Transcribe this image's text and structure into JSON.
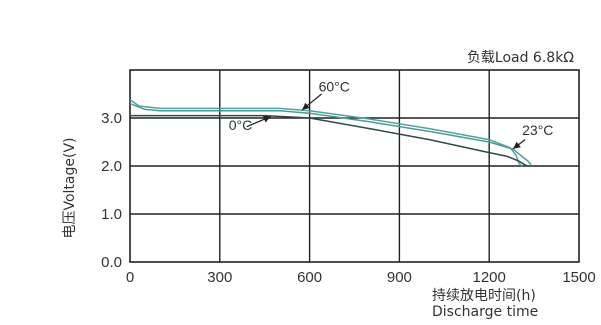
{
  "chart_data": {
    "type": "line",
    "title": "负载Load 6.8kΩ",
    "xlabel": "持续放电时间(h)",
    "xlabel2": "Discharge time",
    "ylabel": "电压Voltage(V)",
    "xlim": [
      0,
      1500
    ],
    "ylim": [
      0.0,
      4.0
    ],
    "x_ticks": [
      "0",
      "300",
      "600",
      "900",
      "1200",
      "1500"
    ],
    "y_ticks": [
      "0.0",
      "1.0",
      "2.0",
      "3.0"
    ],
    "grid": true,
    "series": [
      {
        "name": "60°C",
        "color": "#4fa3a0",
        "x": [
          0,
          30,
          100,
          300,
          500,
          600,
          800,
          1000,
          1200,
          1270,
          1290,
          1300,
          1310
        ],
        "y": [
          3.38,
          3.25,
          3.2,
          3.2,
          3.2,
          3.15,
          2.98,
          2.78,
          2.55,
          2.38,
          2.22,
          2.05,
          2.0
        ]
      },
      {
        "name": "23°C",
        "color": "#4e9a97",
        "x": [
          0,
          50,
          100,
          300,
          500,
          600,
          800,
          1000,
          1200,
          1280,
          1310,
          1330,
          1340
        ],
        "y": [
          3.3,
          3.18,
          3.15,
          3.15,
          3.15,
          3.1,
          2.92,
          2.72,
          2.5,
          2.35,
          2.2,
          2.1,
          2.03
        ]
      },
      {
        "name": "0°C",
        "color": "#2e4a48",
        "x": [
          0,
          100,
          300,
          450,
          600,
          800,
          1000,
          1200,
          1260,
          1300,
          1320,
          1330
        ],
        "y": [
          3.05,
          3.05,
          3.05,
          3.05,
          3.0,
          2.78,
          2.55,
          2.28,
          2.2,
          2.1,
          2.02,
          2.0
        ]
      }
    ],
    "annotations": [
      {
        "text": "60°C",
        "x": 630,
        "y": 3.55
      },
      {
        "text": "0°C",
        "x": 330,
        "y": 2.75
      },
      {
        "text": "23°C",
        "x": 1310,
        "y": 2.65
      }
    ]
  }
}
